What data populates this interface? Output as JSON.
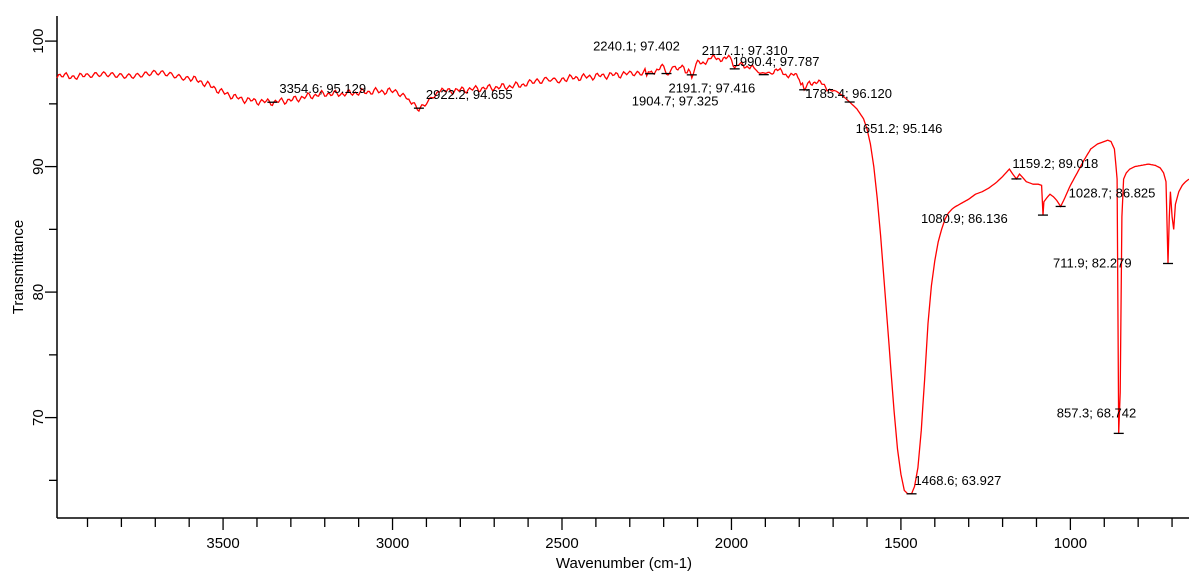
{
  "chart_data": {
    "type": "line",
    "title": "",
    "xlabel": "Wavenumber (cm-1)",
    "ylabel": "Transmittance",
    "xlim": [
      3990,
      650
    ],
    "ylim": [
      62,
      102
    ],
    "x_reversed": true,
    "x_ticks": [
      3500,
      3000,
      2500,
      2000,
      1500,
      1000
    ],
    "x_tick_labels": [
      "3500",
      "3000",
      "2500",
      "2000",
      "1500",
      "1000"
    ],
    "y_ticks": [
      70,
      80,
      90,
      100
    ],
    "y_tick_labels": [
      "70",
      "80",
      "90",
      "100"
    ],
    "grid": false,
    "line_color": "#ff0000",
    "series": [
      {
        "x": [
          3990,
          3900,
          3800,
          3700,
          3600,
          3550,
          3500,
          3450,
          3400,
          3354.6,
          3300,
          3250,
          3200,
          3150,
          3100,
          3050,
          3000,
          2960,
          2940,
          2922.2,
          2900,
          2870,
          2850,
          2800,
          2750,
          2700,
          2650,
          2600,
          2560,
          2500,
          2450,
          2400,
          2350,
          2300,
          2260,
          2240.1,
          2220,
          2200,
          2191.7,
          2170,
          2150,
          2117.1,
          2100,
          2080,
          2060,
          2040,
          2020,
          2000,
          1990.4,
          1970,
          1950,
          1930,
          1904.7,
          1880,
          1860,
          1840,
          1820,
          1800,
          1785.4,
          1770,
          1750,
          1730,
          1710,
          1690,
          1670,
          1651.2,
          1630,
          1610,
          1600,
          1590,
          1580,
          1570,
          1560,
          1550,
          1540,
          1530,
          1520,
          1510,
          1500,
          1490,
          1480,
          1468.6,
          1460,
          1450,
          1440,
          1430,
          1420,
          1410,
          1400,
          1390,
          1380,
          1370,
          1360,
          1350,
          1340,
          1320,
          1300,
          1280,
          1260,
          1240,
          1220,
          1200,
          1180,
          1170,
          1159.2,
          1150,
          1130,
          1110,
          1095,
          1085,
          1080.9,
          1078,
          1070,
          1060,
          1050,
          1040,
          1028.7,
          1020,
          1000,
          980,
          960,
          940,
          920,
          900,
          890,
          880,
          870,
          862,
          857.3,
          853,
          848,
          843,
          835,
          825,
          810,
          790,
          770,
          750,
          735,
          725,
          718,
          711.9,
          708,
          705,
          700,
          695,
          690,
          680,
          670,
          660,
          650
        ],
        "y": [
          97.2,
          97.2,
          97.3,
          97.4,
          97.1,
          96.6,
          95.9,
          95.4,
          95.2,
          95.129,
          95.3,
          95.6,
          95.8,
          95.8,
          95.9,
          96.0,
          96.0,
          95.7,
          95.0,
          94.655,
          95.2,
          95.8,
          96.0,
          96.1,
          96.2,
          96.3,
          96.4,
          96.6,
          96.8,
          97.0,
          97.1,
          97.2,
          97.3,
          97.4,
          97.6,
          97.402,
          97.8,
          97.9,
          97.416,
          97.8,
          98.0,
          97.31,
          98.2,
          98.4,
          98.6,
          98.6,
          98.7,
          98.5,
          97.787,
          98.2,
          98.0,
          97.7,
          97.325,
          97.6,
          97.6,
          97.4,
          97.3,
          97.0,
          96.12,
          96.8,
          96.7,
          96.5,
          96.2,
          96.0,
          95.6,
          95.146,
          94.6,
          93.8,
          93.0,
          91.8,
          90.0,
          87.5,
          84.5,
          81.0,
          77.5,
          74.0,
          70.5,
          67.5,
          65.5,
          64.2,
          63.927,
          63.927,
          64.5,
          66.0,
          69.0,
          73.0,
          77.5,
          80.5,
          82.5,
          84.0,
          85.0,
          85.8,
          86.3,
          86.6,
          86.8,
          87.1,
          87.4,
          87.8,
          88.0,
          88.3,
          88.7,
          89.2,
          89.8,
          89.4,
          89.018,
          89.4,
          88.8,
          88.6,
          88.6,
          88.5,
          86.136,
          87.2,
          87.5,
          87.8,
          87.6,
          87.3,
          86.825,
          87.3,
          88.5,
          89.5,
          90.5,
          91.4,
          91.8,
          92.0,
          92.1,
          92.0,
          91.4,
          89.0,
          68.742,
          72.0,
          86.0,
          89.0,
          89.5,
          89.8,
          90.0,
          90.1,
          90.2,
          90.1,
          89.9,
          89.5,
          88.8,
          82.279,
          86.0,
          88.0,
          86.0,
          85.0,
          87.0,
          88.0,
          88.5,
          88.8,
          89.0
        ]
      }
    ],
    "annotations": [
      {
        "x": 3354.6,
        "y": 95.129,
        "text": "3354.6; 95.129"
      },
      {
        "x": 2922.2,
        "y": 94.655,
        "text": "2922.2; 94.655"
      },
      {
        "x": 2240.1,
        "y": 97.402,
        "text": "2240.1; 97.402"
      },
      {
        "x": 2191.7,
        "y": 97.416,
        "text": "2191.7; 97.416"
      },
      {
        "x": 2117.1,
        "y": 97.31,
        "text": "2117.1; 97.310"
      },
      {
        "x": 1990.4,
        "y": 97.787,
        "text": "1990.4; 97.787"
      },
      {
        "x": 1904.7,
        "y": 97.325,
        "text": "1904.7; 97.325"
      },
      {
        "x": 1785.4,
        "y": 96.12,
        "text": "1785.4; 96.120"
      },
      {
        "x": 1651.2,
        "y": 95.146,
        "text": "1651.2; 95.146"
      },
      {
        "x": 1468.6,
        "y": 63.927,
        "text": "1468.6; 63.927"
      },
      {
        "x": 1159.2,
        "y": 89.018,
        "text": "1159.2; 89.018"
      },
      {
        "x": 1080.9,
        "y": 86.136,
        "text": "1080.9; 86.136"
      },
      {
        "x": 1028.7,
        "y": 86.825,
        "text": "1028.7; 86.825"
      },
      {
        "x": 857.3,
        "y": 68.742,
        "text": "857.3; 68.742"
      },
      {
        "x": 711.9,
        "y": 82.279,
        "text": "711.9; 82.279"
      }
    ]
  }
}
